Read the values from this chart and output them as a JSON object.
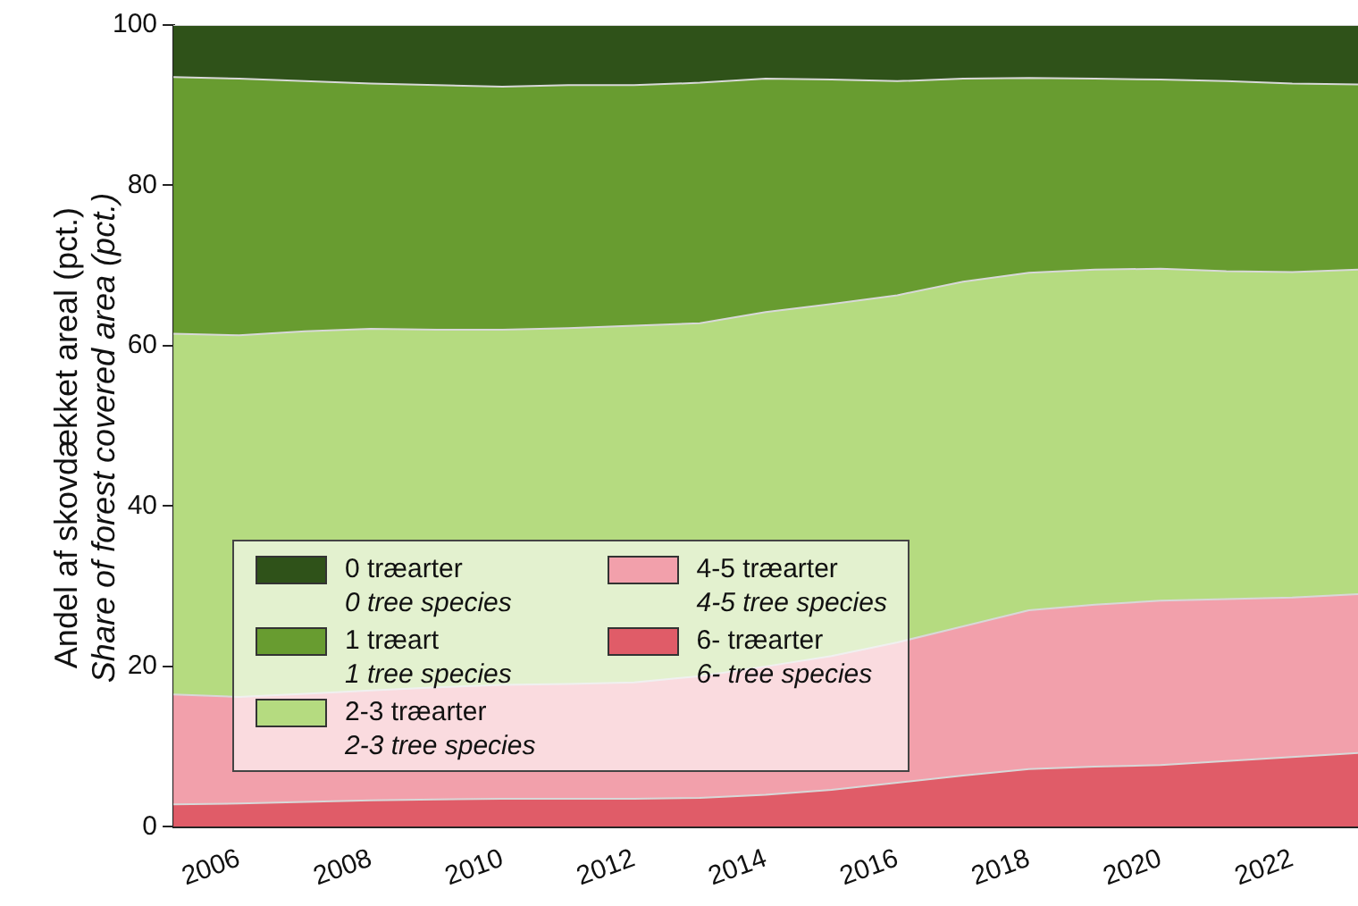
{
  "chart_data": {
    "type": "area",
    "stacked": true,
    "ylabel": "Andel af skovdækket areal (pct.)\nShare of forest covered area (pct.)",
    "x": [
      2005,
      2006,
      2007,
      2008,
      2009,
      2010,
      2011,
      2012,
      2013,
      2014,
      2015,
      2016,
      2017,
      2018,
      2019,
      2020,
      2021,
      2022,
      2023
    ],
    "xlim": [
      2005,
      2023
    ],
    "xticks": [
      2006,
      2008,
      2010,
      2012,
      2014,
      2016,
      2018,
      2020,
      2022
    ],
    "ylim": [
      0,
      100
    ],
    "yticks": [
      0,
      20,
      40,
      60,
      80,
      100
    ],
    "grid": false,
    "legend": "bottom left",
    "series": [
      {
        "name": "6- træarter\n6- tree species",
        "color": "#e05c68",
        "values": [
          2.8,
          2.9,
          3.1,
          3.3,
          3.4,
          3.5,
          3.5,
          3.5,
          3.6,
          4.0,
          4.6,
          5.5,
          6.4,
          7.2,
          7.5,
          7.7,
          8.2,
          8.7,
          9.2
        ]
      },
      {
        "name": "4-5 træarter\n4-5 tree species",
        "color": "#f2a0ab",
        "values": [
          13.7,
          13.3,
          13.5,
          13.7,
          14.0,
          14.2,
          14.3,
          14.5,
          15.2,
          16.0,
          16.7,
          17.5,
          18.6,
          19.8,
          20.2,
          20.5,
          20.2,
          19.9,
          19.8
        ]
      },
      {
        "name": "2-3 træarter\n2-3 tree species",
        "color": "#b5db80",
        "values": [
          45.0,
          45.1,
          45.2,
          45.1,
          44.6,
          44.3,
          44.4,
          44.5,
          44.0,
          44.2,
          43.9,
          43.3,
          43.0,
          42.1,
          41.8,
          41.4,
          40.9,
          40.6,
          40.5
        ]
      },
      {
        "name": "1 træart\n1 tree species",
        "color": "#689c30",
        "values": [
          32.0,
          32.0,
          31.2,
          30.6,
          30.5,
          30.3,
          30.3,
          30.0,
          30.0,
          29.1,
          28.0,
          26.7,
          25.3,
          24.3,
          23.8,
          23.6,
          23.7,
          23.5,
          23.1
        ]
      },
      {
        "name": "0 træarter\n0 tree species",
        "color": "#2f5219",
        "values": [
          6.5,
          6.7,
          7.0,
          7.3,
          7.5,
          7.7,
          7.5,
          7.5,
          7.2,
          6.7,
          6.8,
          7.0,
          6.7,
          6.6,
          6.7,
          6.8,
          7.0,
          7.3,
          7.4
        ]
      }
    ]
  }
}
